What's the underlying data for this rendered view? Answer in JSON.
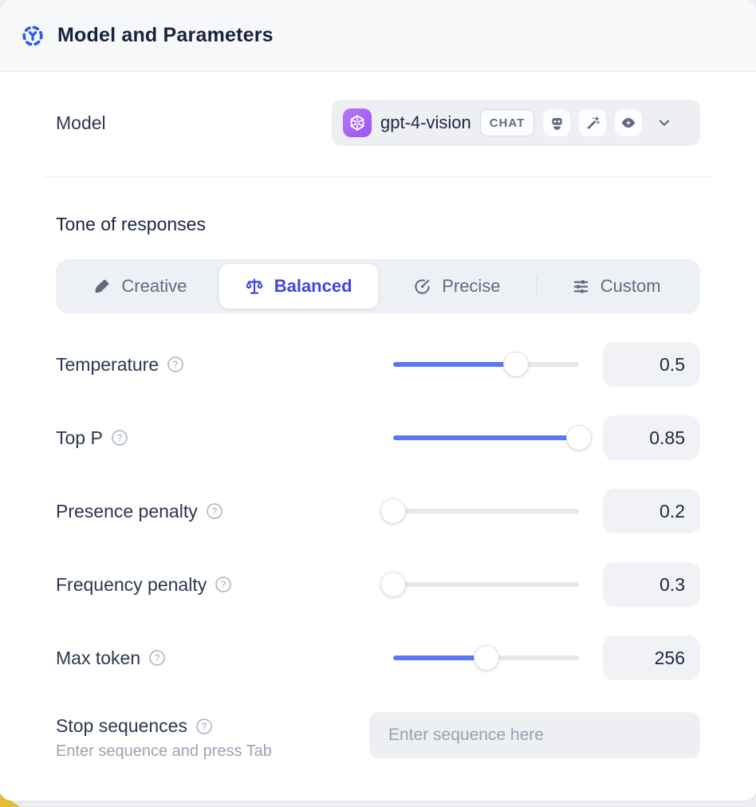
{
  "colors": {
    "accent": "#4145e1",
    "slider-blue": "#5b77f5",
    "provider-purple": "#9d52f2",
    "header-blue": "#2e5bf0",
    "corner-yellow": "#e3bd35"
  },
  "header": {
    "title": "Model and Parameters",
    "icon": "ai-scatter-icon"
  },
  "model": {
    "label": "Model",
    "selected_model": "gpt-4-vision",
    "type_badge": "CHAT",
    "provider_icon": "openai-logo",
    "capability_icons": [
      "robot-icon",
      "magic-wand-icon",
      "vision-eye-icon"
    ]
  },
  "tone": {
    "heading": "Tone of responses",
    "tabs": [
      {
        "label": "Creative",
        "icon": "paintbrush-icon",
        "selected": false
      },
      {
        "label": "Balanced",
        "icon": "scales-icon",
        "selected": true
      },
      {
        "label": "Precise",
        "icon": "target-icon",
        "selected": false
      },
      {
        "label": "Custom",
        "icon": "sliders-icon",
        "selected": false
      }
    ]
  },
  "parameters": {
    "rows": [
      {
        "label": "Temperature",
        "value": "0.5",
        "fill_pct": 66
      },
      {
        "label": "Top P",
        "value": "0.85",
        "fill_pct": 100
      },
      {
        "label": "Presence penalty",
        "value": "0.2",
        "fill_pct": 0
      },
      {
        "label": "Frequency penalty",
        "value": "0.3",
        "fill_pct": 0
      },
      {
        "label": "Max token",
        "value": "256",
        "fill_pct": 50
      }
    ]
  },
  "stop_sequences": {
    "label": "Stop sequences",
    "helper": "Enter sequence and press Tab",
    "placeholder": "Enter sequence here"
  }
}
